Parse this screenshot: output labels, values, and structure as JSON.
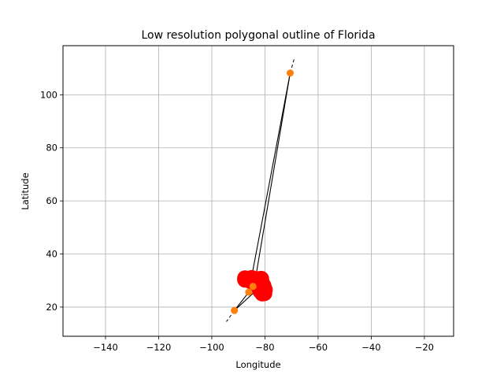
{
  "chart_data": {
    "type": "line",
    "title": "Low resolution polygonal outline of Florida",
    "xlabel": "Longitude",
    "ylabel": "Latitude",
    "xlim": [
      -156,
      -9
    ],
    "ylim": [
      9,
      118.5
    ],
    "xticks": [
      -140,
      -120,
      -100,
      -80,
      -60,
      -40,
      -20
    ],
    "yticks": [
      20,
      40,
      60,
      80,
      100
    ],
    "grid": true,
    "colors": {
      "outline": "#000000",
      "vertex": "#ff0000",
      "endpoint": "#ff7f0e",
      "grid": "#b0b0b0"
    },
    "outline": [
      [
        -87.5,
        30.9
      ],
      [
        -85.0,
        31.0
      ],
      [
        -83.0,
        30.6
      ],
      [
        -82.0,
        30.6
      ],
      [
        -81.4,
        30.7
      ],
      [
        -81.2,
        29.5
      ],
      [
        -80.5,
        28.0
      ],
      [
        -80.0,
        26.5
      ],
      [
        -80.2,
        25.2
      ],
      [
        -81.0,
        25.1
      ],
      [
        -81.8,
        26.1
      ],
      [
        -82.7,
        27.5
      ],
      [
        -82.8,
        29.0
      ],
      [
        -84.0,
        30.0
      ],
      [
        -85.3,
        29.7
      ],
      [
        -86.5,
        30.4
      ],
      [
        -87.5,
        30.3
      ]
    ],
    "spikes": [
      {
        "from": [
          -86.1,
          25.6
        ],
        "to": [
          -70.5,
          108.2
        ]
      },
      {
        "from": [
          -84.0,
          28.2
        ],
        "to": [
          -70.5,
          108.2
        ]
      },
      {
        "from": [
          -86.1,
          25.6
        ],
        "to": [
          -91.5,
          18.7
        ]
      },
      {
        "from": [
          -82.5,
          27.0
        ],
        "to": [
          -91.5,
          18.7
        ]
      }
    ],
    "endpoints": [
      [
        -70.5,
        108.2
      ],
      [
        -91.5,
        18.7
      ],
      [
        -86.1,
        25.6
      ],
      [
        -84.5,
        27.8
      ]
    ],
    "dashed_extensions": [
      {
        "from": [
          -70.5,
          108.2
        ],
        "to": [
          -69.0,
          113.5
        ]
      },
      {
        "from": [
          -91.5,
          18.7
        ],
        "to": [
          -94.5,
          14.5
        ]
      },
      {
        "from": [
          -82.0,
          30.4
        ],
        "to": [
          -80.5,
          31.8
        ]
      },
      {
        "from": [
          -80.3,
          27.7
        ],
        "to": [
          -78.5,
          27.8
        ]
      }
    ]
  }
}
